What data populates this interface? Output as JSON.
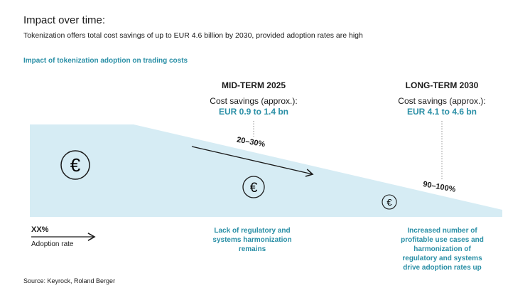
{
  "header": {
    "title": "Impact over time:",
    "subtitle": "Tokenization offers total cost savings of up to EUR 4.6 billion by 2030, provided adoption rates are high"
  },
  "chart_title": "Impact of tokenization adoption on trading costs",
  "phases": [
    {
      "label": "MID-TERM 2025",
      "savings_label": "Cost savings (approx.):",
      "amount": "EUR 0.9 to 1.4 bn",
      "adoption": "20–30%",
      "note": "Lack of regulatory and systems harmonization remains"
    },
    {
      "label": "LONG-TERM 2030",
      "savings_label": "Cost savings (approx.):",
      "amount": "EUR 4.1 to 4.6 bn",
      "adoption": "90–100%",
      "note": "Increased number of profitable use cases and harmonization of regulatory and systems drive adoption rates up"
    }
  ],
  "legend": {
    "value": "XX%",
    "label": "Adoption rate"
  },
  "euro_symbol": "€",
  "source": "Source: Keyrock, Roland Berger",
  "colors": {
    "accent": "#2a8fa6",
    "fill": "#d6ecf4"
  }
}
